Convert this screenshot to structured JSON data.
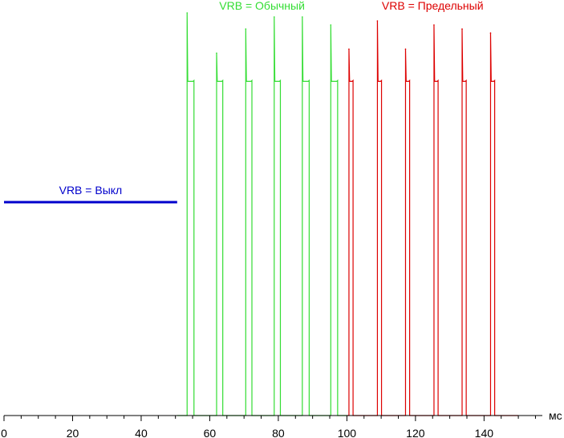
{
  "chart_data": {
    "type": "line",
    "title": "",
    "xlabel": "мс",
    "ylabel": "",
    "xlim": [
      0,
      157
    ],
    "ylim": [
      0,
      1.0
    ],
    "grid": false,
    "x_ticks": [
      0,
      20,
      40,
      60,
      80,
      100,
      120,
      140
    ],
    "x_minor_step": 5,
    "series": [
      {
        "name": "VRB = Выкл",
        "color": "#0000cc",
        "kind": "flat",
        "level": 0.53,
        "x_range": [
          0,
          50.5
        ]
      },
      {
        "name": "VRB = Обычный",
        "color": "#33dd33",
        "kind": "pulses",
        "baseline": 0.0,
        "plateau": 0.83,
        "x_range": [
          50.5,
          100
        ],
        "pulses": [
          {
            "start": 53.4,
            "end": 55.4,
            "spike": 1.0
          },
          {
            "start": 62.0,
            "end": 63.8,
            "spike": 0.9
          },
          {
            "start": 70.5,
            "end": 72.3,
            "spike": 0.96
          },
          {
            "start": 78.8,
            "end": 80.6,
            "spike": 0.99
          },
          {
            "start": 87.0,
            "end": 89.0,
            "spike": 0.99
          },
          {
            "start": 95.3,
            "end": 97.3,
            "spike": 0.97
          }
        ]
      },
      {
        "name": "VRB = Предельный",
        "color": "#dd0000",
        "kind": "pulses",
        "baseline": 0.0,
        "plateau": 0.83,
        "x_range": [
          100,
          150
        ],
        "pulses": [
          {
            "start": 100.6,
            "end": 101.8,
            "spike": 0.91
          },
          {
            "start": 108.9,
            "end": 110.1,
            "spike": 0.98
          },
          {
            "start": 117.1,
            "end": 118.3,
            "spike": 0.91
          },
          {
            "start": 125.4,
            "end": 126.6,
            "spike": 0.97
          },
          {
            "start": 133.6,
            "end": 134.8,
            "spike": 0.96
          },
          {
            "start": 141.9,
            "end": 143.1,
            "spike": 0.95
          }
        ]
      }
    ]
  }
}
